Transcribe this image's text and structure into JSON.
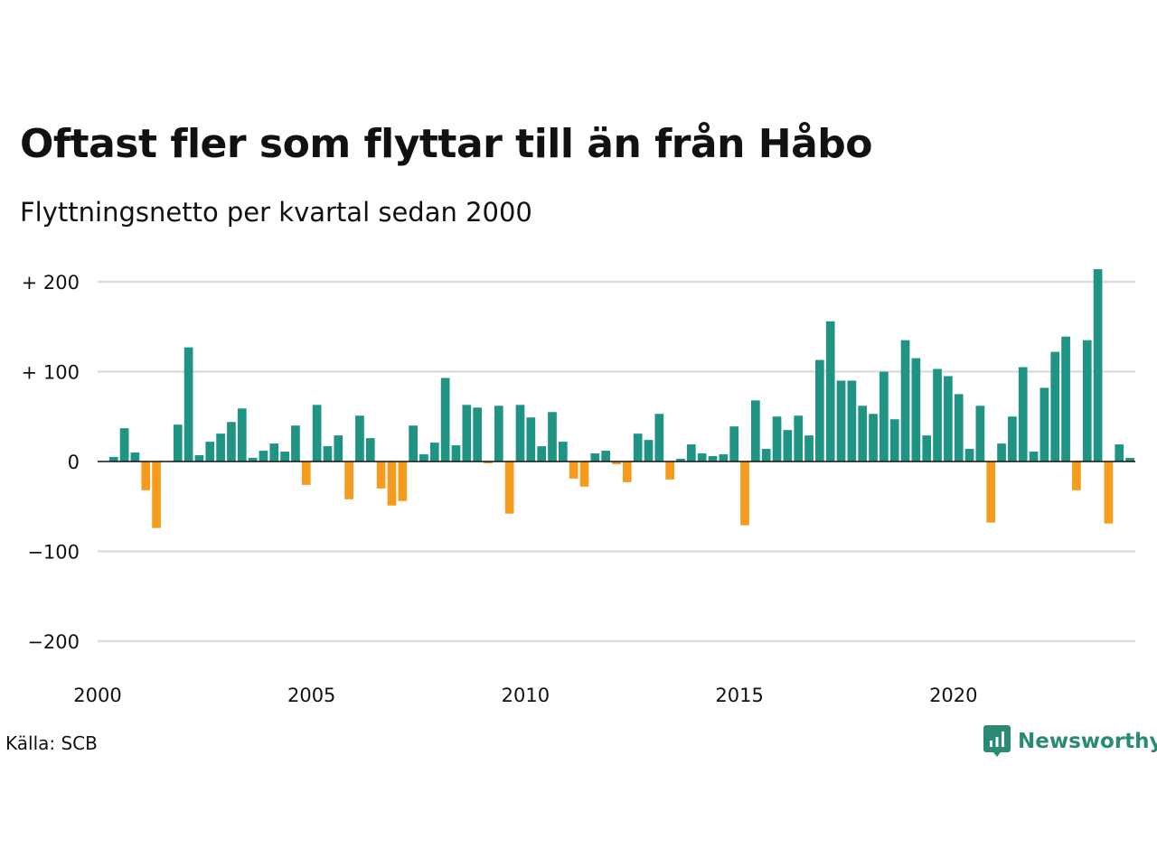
{
  "title": "Oftast fler som flyttar till än från Håbo",
  "subtitle": "Flyttningsnetto per kvartal sedan 2000",
  "source": "Källa: SCB",
  "brand": {
    "name": "Newsworthy",
    "icon": "bar-chart-logo-icon",
    "color": "#2b8a73"
  },
  "colors": {
    "positive": "#1f9384",
    "negative": "#f59c1f",
    "grid": "#dddddd",
    "zero_line": "#111111"
  },
  "chart_data": {
    "type": "bar",
    "title": "Oftast fler som flyttar till än från Håbo",
    "subtitle": "Flyttningsnetto per kvartal sedan 2000",
    "xlabel": "",
    "ylabel": "",
    "ylim": [
      -200,
      200
    ],
    "grid": true,
    "y_ticks": [
      {
        "value": 200,
        "label": "+ 200"
      },
      {
        "value": 100,
        "label": "+ 100"
      },
      {
        "value": 0,
        "label": "0"
      },
      {
        "value": -100,
        "label": "−100"
      },
      {
        "value": -200,
        "label": "−200"
      }
    ],
    "x_ticks": [
      "2000",
      "2005",
      "2010",
      "2015",
      "2020"
    ],
    "categories": [
      "2000 Q1",
      "2000 Q2",
      "2000 Q3",
      "2000 Q4",
      "2001 Q1",
      "2001 Q2",
      "2001 Q3",
      "2001 Q4",
      "2002 Q1",
      "2002 Q2",
      "2002 Q3",
      "2002 Q4",
      "2003 Q1",
      "2003 Q2",
      "2003 Q3",
      "2003 Q4",
      "2004 Q1",
      "2004 Q2",
      "2004 Q3",
      "2004 Q4",
      "2005 Q1",
      "2005 Q2",
      "2005 Q3",
      "2005 Q4",
      "2006 Q1",
      "2006 Q2",
      "2006 Q3",
      "2006 Q4",
      "2007 Q1",
      "2007 Q2",
      "2007 Q3",
      "2007 Q4",
      "2008 Q1",
      "2008 Q2",
      "2008 Q3",
      "2008 Q4",
      "2009 Q1",
      "2009 Q2",
      "2009 Q3",
      "2009 Q4",
      "2010 Q1",
      "2010 Q2",
      "2010 Q3",
      "2010 Q4",
      "2011 Q1",
      "2011 Q2",
      "2011 Q3",
      "2011 Q4",
      "2012 Q1",
      "2012 Q2",
      "2012 Q3",
      "2012 Q4",
      "2013 Q1",
      "2013 Q2",
      "2013 Q3",
      "2013 Q4",
      "2014 Q1",
      "2014 Q2",
      "2014 Q3",
      "2014 Q4",
      "2015 Q1",
      "2015 Q2",
      "2015 Q3",
      "2015 Q4",
      "2016 Q1",
      "2016 Q2",
      "2016 Q3",
      "2016 Q4",
      "2017 Q1",
      "2017 Q2",
      "2017 Q3",
      "2017 Q4",
      "2018 Q1",
      "2018 Q2",
      "2018 Q3",
      "2018 Q4",
      "2019 Q1",
      "2019 Q2",
      "2019 Q3",
      "2019 Q4",
      "2020 Q1",
      "2020 Q2",
      "2020 Q3",
      "2020 Q4",
      "2021 Q1",
      "2021 Q2",
      "2021 Q3",
      "2021 Q4",
      "2022 Q1",
      "2022 Q2",
      "2022 Q3",
      "2022 Q4",
      "2023 Q1",
      "2023 Q2",
      "2023 Q3",
      "2023 Q4",
      "2024 Q1"
    ],
    "values": [
      0,
      5,
      37,
      10,
      -32,
      -74,
      0,
      41,
      127,
      7,
      22,
      31,
      44,
      59,
      4,
      12,
      20,
      11,
      40,
      -26,
      63,
      17,
      29,
      -42,
      51,
      26,
      -30,
      -49,
      -44,
      40,
      8,
      21,
      93,
      18,
      63,
      60,
      -2,
      62,
      -58,
      63,
      49,
      17,
      55,
      22,
      -19,
      -28,
      9,
      12,
      -3,
      -23,
      31,
      24,
      53,
      -20,
      3,
      19,
      9,
      6,
      8,
      39,
      -71,
      68,
      14,
      50,
      35,
      51,
      29,
      113,
      156,
      90,
      90,
      62,
      53,
      100,
      47,
      135,
      115,
      29,
      103,
      95,
      75,
      14,
      62,
      -68,
      20,
      50,
      105,
      11,
      82,
      122,
      139,
      -32,
      135,
      214,
      -69,
      19,
      4
    ]
  }
}
